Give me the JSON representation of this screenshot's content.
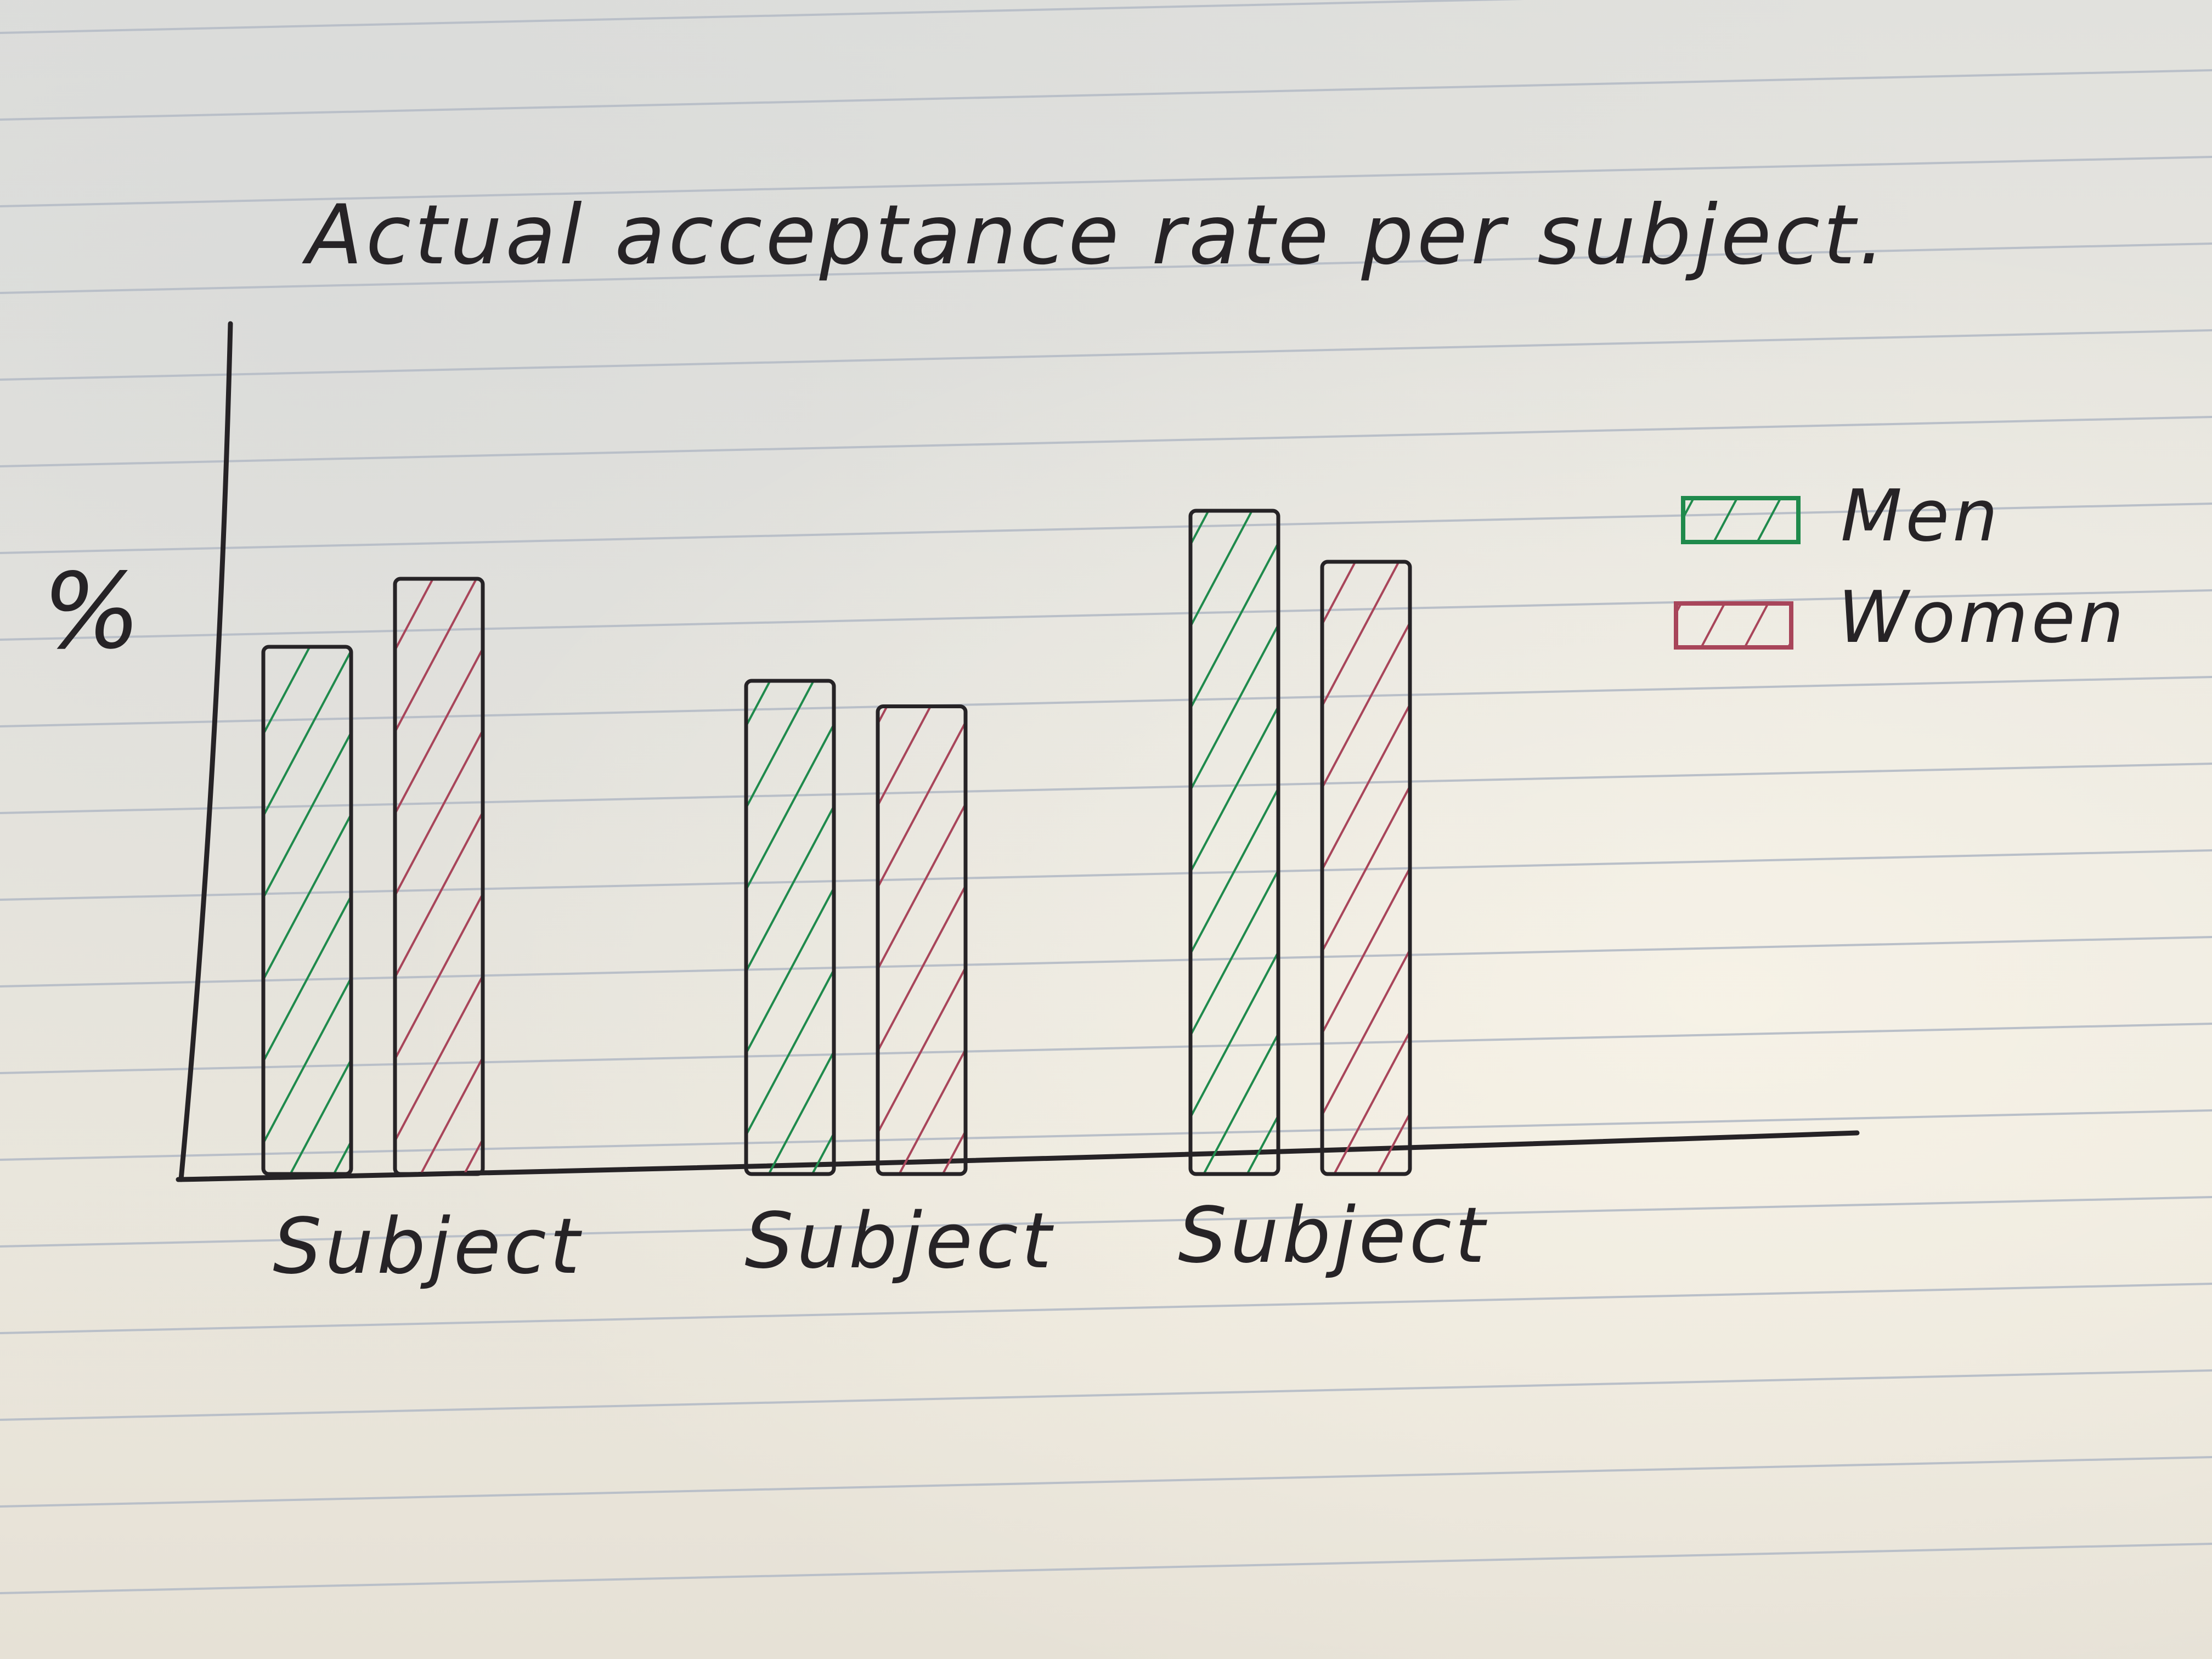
{
  "chart_data": {
    "type": "bar",
    "title": "Actual acceptance rate per subject.",
    "ylabel": "%",
    "xlabel": "",
    "categories": [
      "Subject",
      "Subject",
      "Subject"
    ],
    "series": [
      {
        "name": "Men",
        "values": [
          62,
          58,
          78
        ]
      },
      {
        "name": "Women",
        "values": [
          70,
          55,
          72
        ]
      }
    ],
    "ylim": [
      0,
      100
    ],
    "grid": false,
    "legend": "right",
    "colors": {
      "Men": "#1f8a4c",
      "Women": "#a8455a",
      "ink": "#262326",
      "rule": "#b9bfc8"
    },
    "fill": "hatched"
  }
}
